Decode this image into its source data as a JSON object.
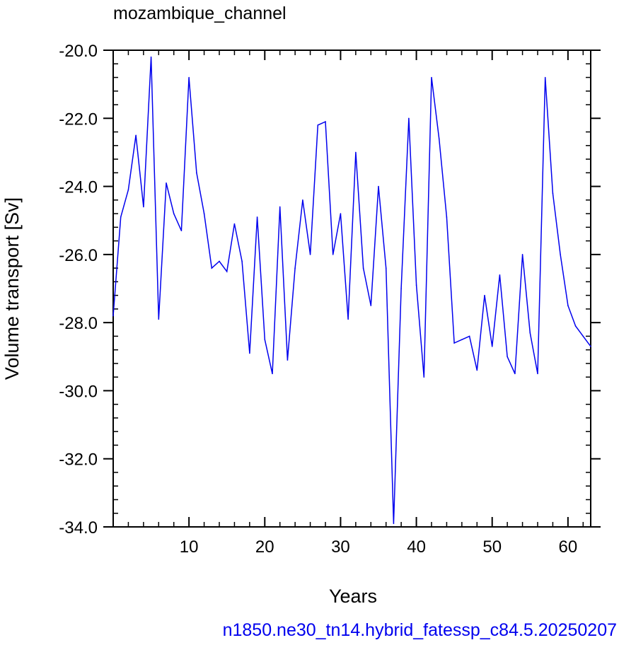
{
  "chart_data": {
    "type": "line",
    "title": "mozambique_channel",
    "xlabel": "Years",
    "ylabel": "Volume transport [Sv]",
    "caption": "n1850.ne30_tn14.hybrid_fatessp_c84.5.20250207",
    "xlim": [
      0,
      63
    ],
    "ylim": [
      -34,
      -20
    ],
    "xticks": [
      10,
      20,
      30,
      40,
      50,
      60
    ],
    "xtick_labels": [
      "10",
      "20",
      "30",
      "40",
      "50",
      "60"
    ],
    "yticks": [
      -20,
      -22,
      -24,
      -26,
      -28,
      -30,
      -32,
      -34
    ],
    "ytick_labels": [
      "-20.0",
      "-22.0",
      "-24.0",
      "-26.0",
      "-28.0",
      "-30.0",
      "-32.0",
      "-34.0"
    ],
    "grid": false,
    "series": [
      {
        "color": "#0000ee",
        "x": [
          0,
          1,
          2,
          3,
          4,
          5,
          6,
          7,
          8,
          9,
          10,
          11,
          12,
          13,
          14,
          15,
          16,
          17,
          18,
          19,
          20,
          21,
          22,
          23,
          24,
          25,
          26,
          27,
          28,
          29,
          30,
          31,
          32,
          33,
          34,
          35,
          36,
          37,
          38,
          39,
          40,
          41,
          42,
          43,
          44,
          45,
          46,
          47,
          48,
          49,
          50,
          51,
          52,
          53,
          54,
          55,
          56,
          57,
          58,
          59,
          60,
          61,
          62,
          63
        ],
        "values": [
          -27.8,
          -24.9,
          -24.1,
          -22.5,
          -24.6,
          -20.2,
          -27.9,
          -23.9,
          -24.8,
          -25.3,
          -20.8,
          -23.6,
          -24.8,
          -26.4,
          -26.2,
          -26.5,
          -25.1,
          -26.2,
          -28.9,
          -24.9,
          -28.5,
          -29.5,
          -24.6,
          -29.1,
          -26.4,
          -24.4,
          -26.0,
          -22.2,
          -22.1,
          -26.0,
          -24.8,
          -27.9,
          -23.0,
          -26.4,
          -27.5,
          -24.0,
          -26.4,
          -33.9,
          -27.0,
          -22.0,
          -26.9,
          -29.6,
          -20.8,
          -22.6,
          -24.9,
          -28.6,
          -28.5,
          -28.4,
          -29.4,
          -27.2,
          -28.7,
          -26.6,
          -29.0,
          -29.5,
          -26.0,
          -28.3,
          -29.5,
          -20.8,
          -24.2,
          -26.0,
          -27.5,
          -28.1,
          -28.4,
          -28.7
        ]
      }
    ]
  }
}
